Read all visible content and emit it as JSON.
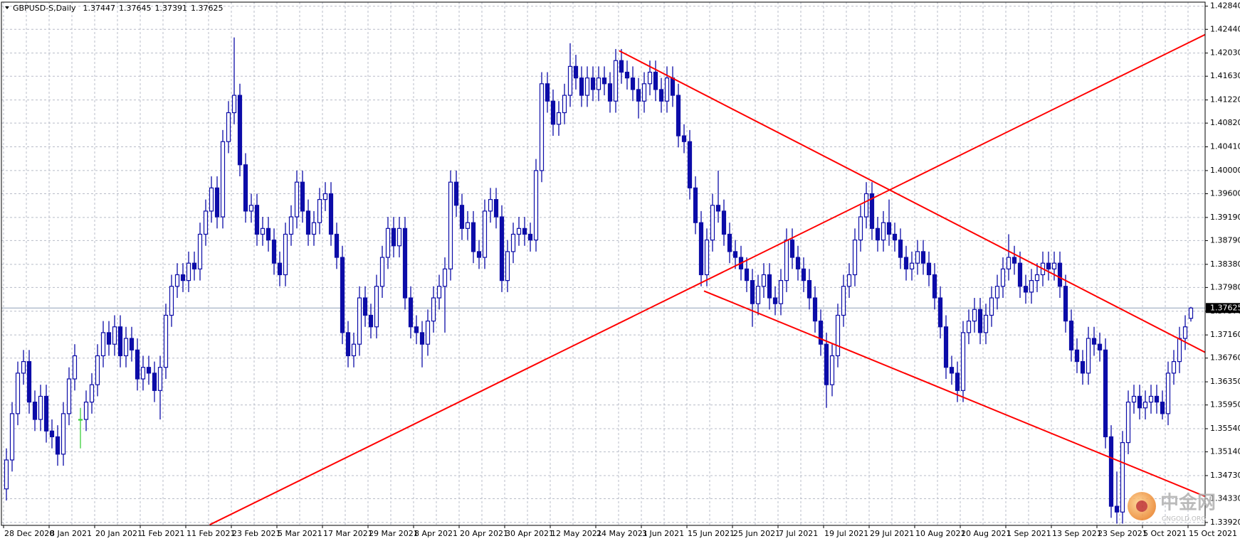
{
  "chart_data": {
    "type": "candlestick",
    "title": "GBPUSD-S,Daily",
    "color": "#0c0ca8",
    "doji_color": "#3cd03c",
    "price_line_color": "#8fa0b8",
    "grid": true,
    "ylim": [
      1.3387,
      1.4291
    ],
    "yticks": [
      {
        "value": 1.4284,
        "label": "1.42840"
      },
      {
        "value": 1.4244,
        "label": "1.42440"
      },
      {
        "value": 1.4203,
        "label": "1.42030"
      },
      {
        "value": 1.4163,
        "label": "1.41630"
      },
      {
        "value": 1.4122,
        "label": "1.41220"
      },
      {
        "value": 1.4082,
        "label": "1.40820"
      },
      {
        "value": 1.4041,
        "label": "1.40410"
      },
      {
        "value": 1.4,
        "label": "1.40000"
      },
      {
        "value": 1.396,
        "label": "1.39600"
      },
      {
        "value": 1.3919,
        "label": "1.39190"
      },
      {
        "value": 1.3879,
        "label": "1.38790"
      },
      {
        "value": 1.3838,
        "label": "1.38380"
      },
      {
        "value": 1.3798,
        "label": "1.37980"
      },
      {
        "value": 1.3757,
        "label": "1.37570"
      },
      {
        "value": 1.3716,
        "label": "1.37160"
      },
      {
        "value": 1.3676,
        "label": "1.36760"
      },
      {
        "value": 1.3635,
        "label": "1.36350"
      },
      {
        "value": 1.3595,
        "label": "1.35950"
      },
      {
        "value": 1.3554,
        "label": "1.35540"
      },
      {
        "value": 1.3514,
        "label": "1.35140"
      },
      {
        "value": 1.3473,
        "label": "1.34730"
      },
      {
        "value": 1.3433,
        "label": "1.34330"
      },
      {
        "value": 1.3392,
        "label": "1.33920"
      }
    ],
    "categories": [
      "28 Dec 2020",
      null,
      null,
      null,
      null,
      null,
      null,
      null,
      "8 Jan 2021",
      null,
      null,
      null,
      null,
      null,
      null,
      null,
      "20 Jan 2021",
      null,
      null,
      null,
      null,
      null,
      null,
      null,
      "1 Feb 2021",
      null,
      null,
      null,
      null,
      null,
      null,
      null,
      "11 Feb 2021",
      null,
      null,
      null,
      null,
      null,
      null,
      null,
      "23 Feb 2021",
      null,
      null,
      null,
      null,
      null,
      null,
      null,
      "5 Mar 2021",
      null,
      null,
      null,
      null,
      null,
      null,
      null,
      "17 Mar 2021",
      null,
      null,
      null,
      null,
      null,
      null,
      null,
      "29 Mar 2021",
      null,
      null,
      null,
      null,
      null,
      null,
      null,
      "8 Apr 2021",
      null,
      null,
      null,
      null,
      null,
      null,
      null,
      "20 Apr 2021",
      null,
      null,
      null,
      null,
      null,
      null,
      null,
      "30 Apr 2021",
      null,
      null,
      null,
      null,
      null,
      null,
      null,
      "12 May 2021",
      null,
      null,
      null,
      null,
      null,
      null,
      null,
      "24 May 2021",
      null,
      null,
      null,
      null,
      null,
      null,
      null,
      "3 Jun 2021",
      null,
      null,
      null,
      null,
      null,
      null,
      null,
      "15 Jun 2021",
      null,
      null,
      null,
      null,
      null,
      null,
      null,
      "25 Jun 2021",
      null,
      null,
      null,
      null,
      null,
      null,
      null,
      "7 Jul 2021",
      null,
      null,
      null,
      null,
      null,
      null,
      null,
      "19 Jul 2021",
      null,
      null,
      null,
      null,
      null,
      null,
      null,
      "29 Jul 2021",
      null,
      null,
      null,
      null,
      null,
      null,
      null,
      "10 Aug 2021",
      null,
      null,
      null,
      null,
      null,
      null,
      null,
      "20 Aug 2021",
      null,
      null,
      null,
      null,
      null,
      null,
      null,
      "1 Sep 2021",
      null,
      null,
      null,
      null,
      null,
      null,
      null,
      "13 Sep 2021",
      null,
      null,
      null,
      null,
      null,
      null,
      null,
      "23 Sep 2021",
      null,
      null,
      null,
      null,
      null,
      null,
      null,
      "5 Oct 2021",
      null,
      null,
      null,
      null,
      null,
      null,
      null,
      "15 Oct 2021"
    ],
    "open": [
      1.345,
      1.35,
      1.358,
      1.365,
      1.367,
      1.36,
      1.357,
      1.361,
      1.355,
      1.354,
      1.351,
      1.358,
      1.364,
      1.357,
      1.357,
      1.36,
      1.363,
      1.368,
      1.372,
      1.37,
      1.373,
      1.368,
      1.371,
      1.369,
      1.364,
      1.366,
      1.365,
      1.362,
      1.366,
      1.375,
      1.38,
      1.382,
      1.381,
      1.384,
      1.383,
      1.389,
      1.393,
      1.397,
      1.392,
      1.405,
      1.41,
      1.413,
      1.401,
      1.393,
      1.394,
      1.389,
      1.39,
      1.388,
      1.384,
      1.382,
      1.389,
      1.392,
      1.398,
      1.393,
      1.389,
      1.391,
      1.395,
      1.396,
      1.389,
      1.385,
      1.372,
      1.368,
      1.37,
      1.378,
      1.375,
      1.373,
      1.38,
      1.385,
      1.39,
      1.387,
      1.39,
      1.378,
      1.373,
      1.372,
      1.37,
      1.374,
      1.378,
      1.38,
      1.383,
      1.398,
      1.394,
      1.39,
      1.391,
      1.386,
      1.385,
      1.393,
      1.395,
      1.392,
      1.381,
      1.386,
      1.389,
      1.39,
      1.389,
      1.388,
      1.4,
      1.415,
      1.412,
      1.408,
      1.41,
      1.413,
      1.418,
      1.416,
      1.413,
      1.416,
      1.414,
      1.416,
      1.415,
      1.412,
      1.419,
      1.417,
      1.416,
      1.414,
      1.412,
      1.415,
      1.417,
      1.414,
      1.412,
      1.416,
      1.413,
      1.406,
      1.405,
      1.397,
      1.391,
      1.382,
      1.388,
      1.394,
      1.393,
      1.389,
      1.386,
      1.385,
      1.383,
      1.381,
      1.377,
      1.38,
      1.382,
      1.378,
      1.377,
      1.381,
      1.388,
      1.385,
      1.383,
      1.381,
      1.378,
      1.374,
      1.37,
      1.363,
      1.368,
      1.375,
      1.38,
      1.382,
      1.388,
      1.392,
      1.396,
      1.39,
      1.388,
      1.391,
      1.389,
      1.388,
      1.385,
      1.383,
      1.384,
      1.386,
      1.384,
      1.382,
      1.378,
      1.373,
      1.366,
      1.365,
      1.362,
      1.372,
      1.374,
      1.376,
      1.372,
      1.375,
      1.378,
      1.38,
      1.383,
      1.385,
      1.384,
      1.38,
      1.379,
      1.381,
      1.382,
      1.384,
      1.383,
      1.384,
      1.38,
      1.374,
      1.369,
      1.367,
      1.365,
      1.371,
      1.37,
      1.369,
      1.354,
      1.342,
      1.341,
      1.353,
      1.36,
      1.361,
      1.359,
      1.36,
      1.361,
      1.36,
      1.358,
      1.365,
      1.367,
      1.371,
      1.37447
    ],
    "high": [
      1.352,
      1.36,
      1.367,
      1.369,
      1.369,
      1.362,
      1.363,
      1.363,
      1.357,
      1.356,
      1.36,
      1.366,
      1.37,
      1.359,
      1.362,
      1.365,
      1.37,
      1.374,
      1.374,
      1.375,
      1.375,
      1.373,
      1.373,
      1.371,
      1.368,
      1.368,
      1.367,
      1.368,
      1.377,
      1.382,
      1.384,
      1.384,
      1.386,
      1.386,
      1.391,
      1.395,
      1.399,
      1.399,
      1.407,
      1.412,
      1.423,
      1.415,
      1.403,
      1.396,
      1.396,
      1.392,
      1.392,
      1.39,
      1.386,
      1.391,
      1.394,
      1.4,
      1.4,
      1.395,
      1.393,
      1.397,
      1.398,
      1.398,
      1.391,
      1.387,
      1.374,
      1.372,
      1.38,
      1.38,
      1.377,
      1.382,
      1.387,
      1.392,
      1.392,
      1.392,
      1.392,
      1.38,
      1.375,
      1.374,
      1.376,
      1.38,
      1.382,
      1.385,
      1.4,
      1.4,
      1.396,
      1.393,
      1.393,
      1.388,
      1.395,
      1.397,
      1.397,
      1.394,
      1.388,
      1.391,
      1.392,
      1.392,
      1.391,
      1.402,
      1.417,
      1.417,
      1.414,
      1.412,
      1.415,
      1.422,
      1.42,
      1.418,
      1.418,
      1.418,
      1.418,
      1.418,
      1.417,
      1.421,
      1.421,
      1.419,
      1.418,
      1.416,
      1.417,
      1.419,
      1.419,
      1.416,
      1.418,
      1.418,
      1.415,
      1.408,
      1.407,
      1.399,
      1.393,
      1.39,
      1.396,
      1.4,
      1.395,
      1.391,
      1.388,
      1.387,
      1.385,
      1.383,
      1.382,
      1.384,
      1.384,
      1.38,
      1.383,
      1.39,
      1.39,
      1.387,
      1.385,
      1.383,
      1.38,
      1.376,
      1.372,
      1.37,
      1.377,
      1.382,
      1.384,
      1.39,
      1.394,
      1.398,
      1.398,
      1.392,
      1.393,
      1.395,
      1.391,
      1.39,
      1.387,
      1.386,
      1.388,
      1.388,
      1.386,
      1.384,
      1.38,
      1.375,
      1.368,
      1.367,
      1.374,
      1.376,
      1.378,
      1.378,
      1.377,
      1.38,
      1.382,
      1.385,
      1.389,
      1.387,
      1.386,
      1.382,
      1.383,
      1.384,
      1.386,
      1.386,
      1.386,
      1.386,
      1.382,
      1.376,
      1.371,
      1.369,
      1.373,
      1.373,
      1.372,
      1.371,
      1.356,
      1.348,
      1.355,
      1.362,
      1.363,
      1.363,
      1.362,
      1.363,
      1.363,
      1.362,
      1.367,
      1.369,
      1.373,
      1.375,
      1.37645
    ],
    "low": [
      1.343,
      1.348,
      1.356,
      1.363,
      1.358,
      1.355,
      1.355,
      1.353,
      1.352,
      1.349,
      1.349,
      1.356,
      1.362,
      1.352,
      1.355,
      1.358,
      1.361,
      1.366,
      1.368,
      1.368,
      1.366,
      1.366,
      1.367,
      1.362,
      1.362,
      1.363,
      1.36,
      1.357,
      1.364,
      1.373,
      1.378,
      1.379,
      1.379,
      1.381,
      1.381,
      1.387,
      1.391,
      1.39,
      1.39,
      1.403,
      1.408,
      1.399,
      1.391,
      1.391,
      1.387,
      1.387,
      1.386,
      1.382,
      1.38,
      1.38,
      1.387,
      1.39,
      1.391,
      1.387,
      1.387,
      1.389,
      1.393,
      1.387,
      1.383,
      1.37,
      1.366,
      1.366,
      1.368,
      1.373,
      1.371,
      1.371,
      1.378,
      1.383,
      1.385,
      1.385,
      1.376,
      1.371,
      1.37,
      1.366,
      1.368,
      1.372,
      1.376,
      1.372,
      1.381,
      1.392,
      1.388,
      1.388,
      1.384,
      1.383,
      1.383,
      1.391,
      1.39,
      1.379,
      1.379,
      1.384,
      1.387,
      1.387,
      1.386,
      1.386,
      1.398,
      1.41,
      1.406,
      1.406,
      1.408,
      1.411,
      1.414,
      1.411,
      1.411,
      1.412,
      1.412,
      1.413,
      1.41,
      1.41,
      1.415,
      1.414,
      1.412,
      1.409,
      1.41,
      1.413,
      1.412,
      1.41,
      1.41,
      1.411,
      1.404,
      1.403,
      1.395,
      1.389,
      1.38,
      1.38,
      1.386,
      1.391,
      1.387,
      1.384,
      1.383,
      1.381,
      1.379,
      1.373,
      1.375,
      1.378,
      1.376,
      1.375,
      1.375,
      1.379,
      1.383,
      1.381,
      1.379,
      1.376,
      1.372,
      1.368,
      1.359,
      1.361,
      1.366,
      1.373,
      1.378,
      1.38,
      1.386,
      1.39,
      1.388,
      1.386,
      1.386,
      1.387,
      1.386,
      1.383,
      1.381,
      1.381,
      1.382,
      1.382,
      1.38,
      1.376,
      1.371,
      1.364,
      1.363,
      1.36,
      1.36,
      1.37,
      1.372,
      1.37,
      1.37,
      1.373,
      1.376,
      1.378,
      1.381,
      1.382,
      1.378,
      1.377,
      1.377,
      1.379,
      1.38,
      1.381,
      1.381,
      1.378,
      1.372,
      1.367,
      1.365,
      1.363,
      1.363,
      1.368,
      1.367,
      1.352,
      1.34,
      1.339,
      1.339,
      1.351,
      1.358,
      1.357,
      1.357,
      1.358,
      1.358,
      1.357,
      1.356,
      1.363,
      1.365,
      1.369,
      1.37391
    ],
    "close": [
      1.35,
      1.358,
      1.365,
      1.367,
      1.36,
      1.357,
      1.361,
      1.355,
      1.354,
      1.351,
      1.358,
      1.364,
      1.368,
      1.357,
      1.36,
      1.363,
      1.368,
      1.372,
      1.37,
      1.373,
      1.368,
      1.371,
      1.369,
      1.364,
      1.366,
      1.365,
      1.362,
      1.366,
      1.375,
      1.38,
      1.382,
      1.381,
      1.384,
      1.383,
      1.389,
      1.393,
      1.397,
      1.392,
      1.405,
      1.41,
      1.413,
      1.401,
      1.393,
      1.394,
      1.389,
      1.39,
      1.388,
      1.384,
      1.382,
      1.389,
      1.392,
      1.398,
      1.393,
      1.389,
      1.391,
      1.395,
      1.396,
      1.389,
      1.385,
      1.372,
      1.368,
      1.37,
      1.378,
      1.375,
      1.373,
      1.38,
      1.385,
      1.39,
      1.387,
      1.39,
      1.378,
      1.373,
      1.372,
      1.37,
      1.374,
      1.378,
      1.38,
      1.383,
      1.398,
      1.394,
      1.39,
      1.391,
      1.386,
      1.385,
      1.393,
      1.395,
      1.392,
      1.381,
      1.386,
      1.389,
      1.39,
      1.389,
      1.388,
      1.4,
      1.415,
      1.412,
      1.408,
      1.41,
      1.413,
      1.418,
      1.416,
      1.413,
      1.416,
      1.414,
      1.416,
      1.415,
      1.412,
      1.419,
      1.417,
      1.416,
      1.414,
      1.412,
      1.415,
      1.417,
      1.414,
      1.412,
      1.416,
      1.413,
      1.406,
      1.405,
      1.397,
      1.391,
      1.382,
      1.388,
      1.394,
      1.393,
      1.389,
      1.386,
      1.385,
      1.383,
      1.381,
      1.377,
      1.38,
      1.382,
      1.378,
      1.377,
      1.381,
      1.388,
      1.385,
      1.383,
      1.381,
      1.378,
      1.374,
      1.37,
      1.363,
      1.368,
      1.375,
      1.38,
      1.382,
      1.388,
      1.392,
      1.396,
      1.39,
      1.388,
      1.391,
      1.389,
      1.388,
      1.385,
      1.383,
      1.384,
      1.386,
      1.384,
      1.382,
      1.378,
      1.373,
      1.366,
      1.365,
      1.362,
      1.372,
      1.374,
      1.376,
      1.372,
      1.375,
      1.378,
      1.38,
      1.383,
      1.385,
      1.384,
      1.38,
      1.379,
      1.381,
      1.382,
      1.384,
      1.383,
      1.384,
      1.38,
      1.374,
      1.369,
      1.367,
      1.365,
      1.371,
      1.37,
      1.369,
      1.354,
      1.342,
      1.341,
      1.353,
      1.36,
      1.361,
      1.359,
      1.36,
      1.361,
      1.36,
      1.358,
      1.365,
      1.367,
      1.371,
      1.373,
      1.37625
    ],
    "trend_lines": [
      {
        "color": "#ff0000",
        "x": [
          35.7,
          210.5
        ],
        "y": [
          1.3388,
          1.4235
        ]
      },
      {
        "color": "#ff0000",
        "x": [
          107.6,
          210.5
        ],
        "y": [
          1.4207,
          1.3686
        ]
      },
      {
        "color": "#ff0000",
        "x": [
          122.5,
          210.5
        ],
        "y": [
          1.3792,
          1.3437
        ]
      }
    ]
  },
  "watermark": {
    "title": "中金网",
    "url": "CNGOLD.ORG"
  }
}
